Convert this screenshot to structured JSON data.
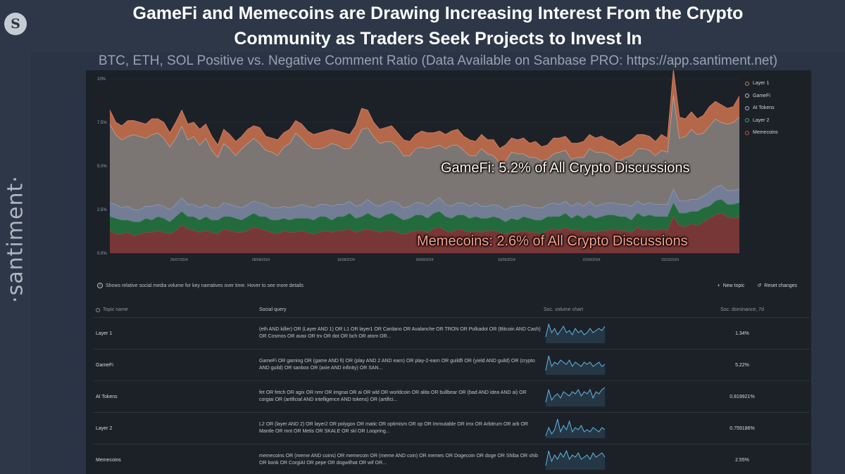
{
  "header": {
    "title_line1": "GameFi and Memecoins are Drawing Increasing Interest From the Crypto",
    "title_line2": "Community as Traders Seek Projects to Invest In",
    "subtitle": "BTC, ETH, SOL Positive vs. Negative Comment Ratio (Data Available on Sanbase PRO: https://app.santiment.net)"
  },
  "brand": {
    "logo_letter": "S",
    "wordmark": "·santiment·"
  },
  "annotations": {
    "gamefi": "GameFi: 5.2% of All Crypto Discussions",
    "memecoins": "Memecoins: 2.6% of All Crypto Discussions"
  },
  "info": {
    "text": "Shows relative social media volume for key narratives over time. Hover to see more details",
    "new_topic": "New topic",
    "reset": "Reset changes"
  },
  "colors": {
    "layer1": "#b5674a",
    "gamefi": "#7b7674",
    "ai": "#737d96",
    "layer2": "#236b3c",
    "memecoins": "#773737",
    "sparkline": "#5fb8e6"
  },
  "table": {
    "headers": [
      "Topic name",
      "Social query",
      "Soc. volume chart",
      "Soc. dominance, 7d"
    ],
    "rows": [
      {
        "name": "Layer 1",
        "query": "(eth AND killer) OR (Layer AND 1) OR L1 OR layer1 OR Cardano OR Avalanche OR TRON OR Polkadot OR (Bitcoin AND Cash) OR Cosmos OR avax OR trx OR dot OR bch OR atom OR...",
        "dominance": "1.34%"
      },
      {
        "name": "GameFi",
        "query": "GameFi OR gaming OR (game AND fi) OR (play AND 2 AND earn) OR play-2-earn OR guildfi OR (yield AND guild) OR (crypto AND guild) OR sanbox OR (axie AND infinity) OR SAN...",
        "dominance": "5.22%"
      },
      {
        "name": "AI Tokens",
        "query": "fet OR fetch OR agix OR nmr OR imgnai OR ai OR wld OR worldcoin OR alita OR bullbear OR (bad AND idea AND ai) OR corgiai OR (artificial AND intelligence AND tokens) OR (artifici...",
        "dominance": "0.819921%"
      },
      {
        "name": "Layer 2",
        "query": "L2 OR (layer AND 2) OR layer2 OR polygon OR matic OR optimism OR op OR Immutable OR imx OR Arbitrum OR arb OR Mantle OR mnt OR Metis OR SKALE OR skl OR Loopring...",
        "dominance": "0.759186%"
      },
      {
        "name": "Memecoins",
        "query": "memecoins OR (meme AND coins) OR memecoin OR (meme AND coin) OR memes OR Dogecoin OR doge OR Shiba OR shib OR bonk OR CorgiAI OR pepe OR dogwifhat OR wif OR...",
        "dominance": "2.55%"
      }
    ]
  },
  "chart_data": {
    "type": "area",
    "stacked": true,
    "y_ticks": [
      "0.0%",
      "2.5%",
      "5.0%",
      "7.5%",
      "10%"
    ],
    "ylim": [
      0,
      10
    ],
    "x_ticks": [
      "26/07/2024",
      "08/08/2024",
      "16/08/2024",
      "26/08/2024",
      "10/09/2024",
      "22/09/2024",
      "03/10/2024"
    ],
    "legend": [
      "Layer 1",
      "GameFi",
      "AI Tokens",
      "Layer 2",
      "Memecoins"
    ],
    "series": [
      {
        "name": "Memecoins",
        "values": [
          1.3,
          1.1,
          1.1,
          1.2,
          1.0,
          1.1,
          1.2,
          1.2,
          1.3,
          1.2,
          1.1,
          1.3,
          1.6,
          1.4,
          1.3,
          1.2,
          1.3,
          1.2,
          1.1,
          1.4,
          1.3,
          1.2,
          1.2,
          1.3,
          1.5,
          1.4,
          1.3,
          1.2,
          1.1,
          1.3,
          1.2,
          1.2,
          1.3,
          1.2,
          1.1,
          1.2,
          1.3,
          1.2,
          1.3,
          1.3,
          1.4,
          1.2,
          1.3,
          1.4,
          1.3,
          1.2,
          1.3,
          1.3,
          1.2,
          1.1,
          1.2,
          1.3,
          1.3,
          1.2,
          1.4,
          1.5,
          1.3,
          1.2,
          1.4,
          1.3,
          1.2,
          1.3,
          1.2,
          1.3,
          1.3,
          1.2,
          1.1,
          1.2,
          1.2,
          1.3,
          1.2,
          1.2,
          1.1,
          1.3,
          1.4,
          1.3,
          1.5,
          1.3,
          1.4,
          1.2,
          1.3,
          1.2,
          1.3,
          1.3,
          1.4,
          1.3,
          1.3,
          1.2,
          1.5,
          1.3,
          1.4,
          1.3,
          1.4,
          1.3,
          2.1,
          1.6,
          1.5,
          1.7,
          1.6,
          1.8,
          2.0,
          2.2,
          2.3,
          2.1,
          2.0,
          2.1
        ]
      },
      {
        "name": "Layer 2",
        "values": [
          0.8,
          0.9,
          0.8,
          0.7,
          0.8,
          0.7,
          0.8,
          0.7,
          0.8,
          0.8,
          0.7,
          0.8,
          0.8,
          0.7,
          0.8,
          0.7,
          0.8,
          0.7,
          0.8,
          0.7,
          0.8,
          0.8,
          0.7,
          0.8,
          0.8,
          0.7,
          0.8,
          0.7,
          0.8,
          0.7,
          0.7,
          0.8,
          0.7,
          0.8,
          0.8,
          0.9,
          0.8,
          0.7,
          0.8,
          0.8,
          0.9,
          0.8,
          0.8,
          0.9,
          0.8,
          0.8,
          0.9,
          1.0,
          0.9,
          0.8,
          0.8,
          0.9,
          0.9,
          0.8,
          0.9,
          0.9,
          0.8,
          0.8,
          0.8,
          0.9,
          0.8,
          0.8,
          0.8,
          0.7,
          0.8,
          0.8,
          0.7,
          0.8,
          0.7,
          0.8,
          0.8,
          0.7,
          0.8,
          0.8,
          0.7,
          0.8,
          0.8,
          0.7,
          0.8,
          0.8,
          0.9,
          0.8,
          0.8,
          0.9,
          0.8,
          0.8,
          0.8,
          0.7,
          0.8,
          0.8,
          0.8,
          0.8,
          0.7,
          0.8,
          0.8,
          0.7,
          0.8,
          0.7,
          0.8,
          0.8,
          0.7,
          0.8,
          0.8,
          0.7,
          0.8,
          0.8
        ]
      },
      {
        "name": "AI Tokens",
        "values": [
          0.8,
          0.8,
          0.7,
          0.8,
          0.7,
          0.7,
          0.7,
          0.8,
          0.7,
          0.7,
          0.7,
          0.7,
          0.8,
          0.7,
          0.7,
          0.7,
          0.7,
          0.7,
          0.7,
          0.8,
          0.7,
          0.7,
          0.7,
          0.7,
          0.7,
          0.8,
          0.7,
          0.7,
          0.7,
          0.7,
          0.7,
          0.7,
          0.8,
          0.7,
          0.7,
          0.7,
          0.7,
          0.8,
          0.7,
          0.7,
          0.7,
          0.7,
          0.7,
          0.8,
          0.7,
          0.7,
          0.7,
          0.7,
          0.8,
          0.7,
          0.7,
          0.7,
          0.7,
          0.7,
          0.7,
          0.8,
          0.7,
          0.7,
          0.7,
          0.7,
          0.7,
          0.8,
          0.7,
          0.7,
          0.7,
          0.7,
          0.7,
          0.7,
          0.8,
          0.7,
          0.7,
          0.7,
          0.7,
          0.7,
          0.8,
          0.7,
          0.7,
          0.7,
          0.7,
          0.7,
          0.8,
          0.7,
          0.7,
          0.7,
          0.7,
          0.7,
          0.7,
          0.8,
          0.7,
          0.7,
          0.7,
          0.7,
          0.7,
          0.7,
          0.8,
          0.7,
          0.7,
          0.7,
          0.7,
          0.7,
          0.8,
          0.8,
          0.8,
          0.8,
          0.8,
          0.8
        ]
      },
      {
        "name": "GameFi",
        "values": [
          4.5,
          4.0,
          3.9,
          4.0,
          4.3,
          4.2,
          3.9,
          4.1,
          4.1,
          3.9,
          3.6,
          3.8,
          4.1,
          3.7,
          3.9,
          3.6,
          3.8,
          3.3,
          2.9,
          3.4,
          3.2,
          2.9,
          3.4,
          3.5,
          3.6,
          3.4,
          3.1,
          3.2,
          3.0,
          3.4,
          3.7,
          4.2,
          3.8,
          3.5,
          3.4,
          3.2,
          3.3,
          3.6,
          3.4,
          3.2,
          3.0,
          3.7,
          4.3,
          4.1,
          3.9,
          3.6,
          3.5,
          3.4,
          3.2,
          3.0,
          2.9,
          3.1,
          3.2,
          3.3,
          3.1,
          3.0,
          3.2,
          3.5,
          3.3,
          3.0,
          2.9,
          2.7,
          3.3,
          3.0,
          2.8,
          2.5,
          2.8,
          3.1,
          3.0,
          2.9,
          2.8,
          2.9,
          2.7,
          2.6,
          2.8,
          3.0,
          2.9,
          2.7,
          2.6,
          2.8,
          3.0,
          3.1,
          3.0,
          2.8,
          2.6,
          2.5,
          2.7,
          2.9,
          3.0,
          3.2,
          3.0,
          2.8,
          3.1,
          3.0,
          5.4,
          3.6,
          3.7,
          4.0,
          3.7,
          3.6,
          3.8,
          3.9,
          3.6,
          3.8,
          3.9,
          4.1
        ]
      },
      {
        "name": "Layer 1",
        "values": [
          0.8,
          0.7,
          0.8,
          0.9,
          0.8,
          0.8,
          0.8,
          0.9,
          0.8,
          0.9,
          0.8,
          0.9,
          0.9,
          0.9,
          0.8,
          0.9,
          0.8,
          0.8,
          0.7,
          0.8,
          0.8,
          0.8,
          0.7,
          0.8,
          0.7,
          0.9,
          0.8,
          0.8,
          0.9,
          0.8,
          0.8,
          0.7,
          0.8,
          0.8,
          0.8,
          0.9,
          0.9,
          0.8,
          0.8,
          0.9,
          0.8,
          0.9,
          1.2,
          1.0,
          0.8,
          0.8,
          0.8,
          0.9,
          0.8,
          0.9,
          0.8,
          0.8,
          0.9,
          0.9,
          0.8,
          0.8,
          0.8,
          0.8,
          0.9,
          0.8,
          0.9,
          0.8,
          0.8,
          0.8,
          0.9,
          0.8,
          0.9,
          0.8,
          0.8,
          0.9,
          0.8,
          0.9,
          0.8,
          0.8,
          0.9,
          0.8,
          0.8,
          0.9,
          0.8,
          0.9,
          0.8,
          0.8,
          0.9,
          0.8,
          0.9,
          0.8,
          0.8,
          0.9,
          0.8,
          0.8,
          0.8,
          0.8,
          0.9,
          0.8,
          1.4,
          1.2,
          1.0,
          1.0,
          0.9,
          1.0,
          1.1,
          1.0,
          1.0,
          0.9,
          0.9,
          1.2
        ]
      }
    ],
    "sparklines": [
      [
        0.3,
        0.9,
        0.5,
        0.7,
        0.4,
        0.6,
        0.8,
        0.5,
        0.6,
        0.4,
        0.7,
        0.5,
        0.6,
        0.4,
        0.5,
        0.7,
        0.5,
        0.6,
        0.7,
        0.6,
        0.8
      ],
      [
        0.2,
        0.9,
        0.4,
        0.6,
        0.5,
        0.7,
        0.6,
        0.5,
        0.7,
        0.4,
        0.6,
        0.5,
        0.4,
        0.6,
        0.5,
        0.6,
        0.4,
        0.5,
        0.6,
        0.4,
        0.5
      ],
      [
        0.2,
        0.8,
        0.3,
        0.5,
        0.6,
        0.4,
        0.7,
        0.6,
        0.5,
        0.7,
        0.6,
        0.8,
        0.5,
        0.7,
        0.6,
        0.8,
        0.4,
        0.7,
        0.6,
        0.8,
        0.9
      ],
      [
        0.1,
        0.5,
        0.2,
        0.4,
        0.9,
        0.3,
        0.6,
        0.4,
        0.8,
        0.3,
        0.5,
        0.4,
        0.6,
        0.3,
        0.4,
        0.3,
        0.5,
        0.4,
        0.3,
        0.5,
        0.4
      ],
      [
        0.2,
        0.9,
        0.4,
        0.7,
        0.5,
        0.8,
        0.6,
        0.9,
        0.5,
        0.7,
        0.6,
        0.8,
        0.5,
        0.6,
        0.7,
        0.5,
        0.8,
        0.6,
        0.7,
        0.8,
        0.6
      ]
    ]
  }
}
